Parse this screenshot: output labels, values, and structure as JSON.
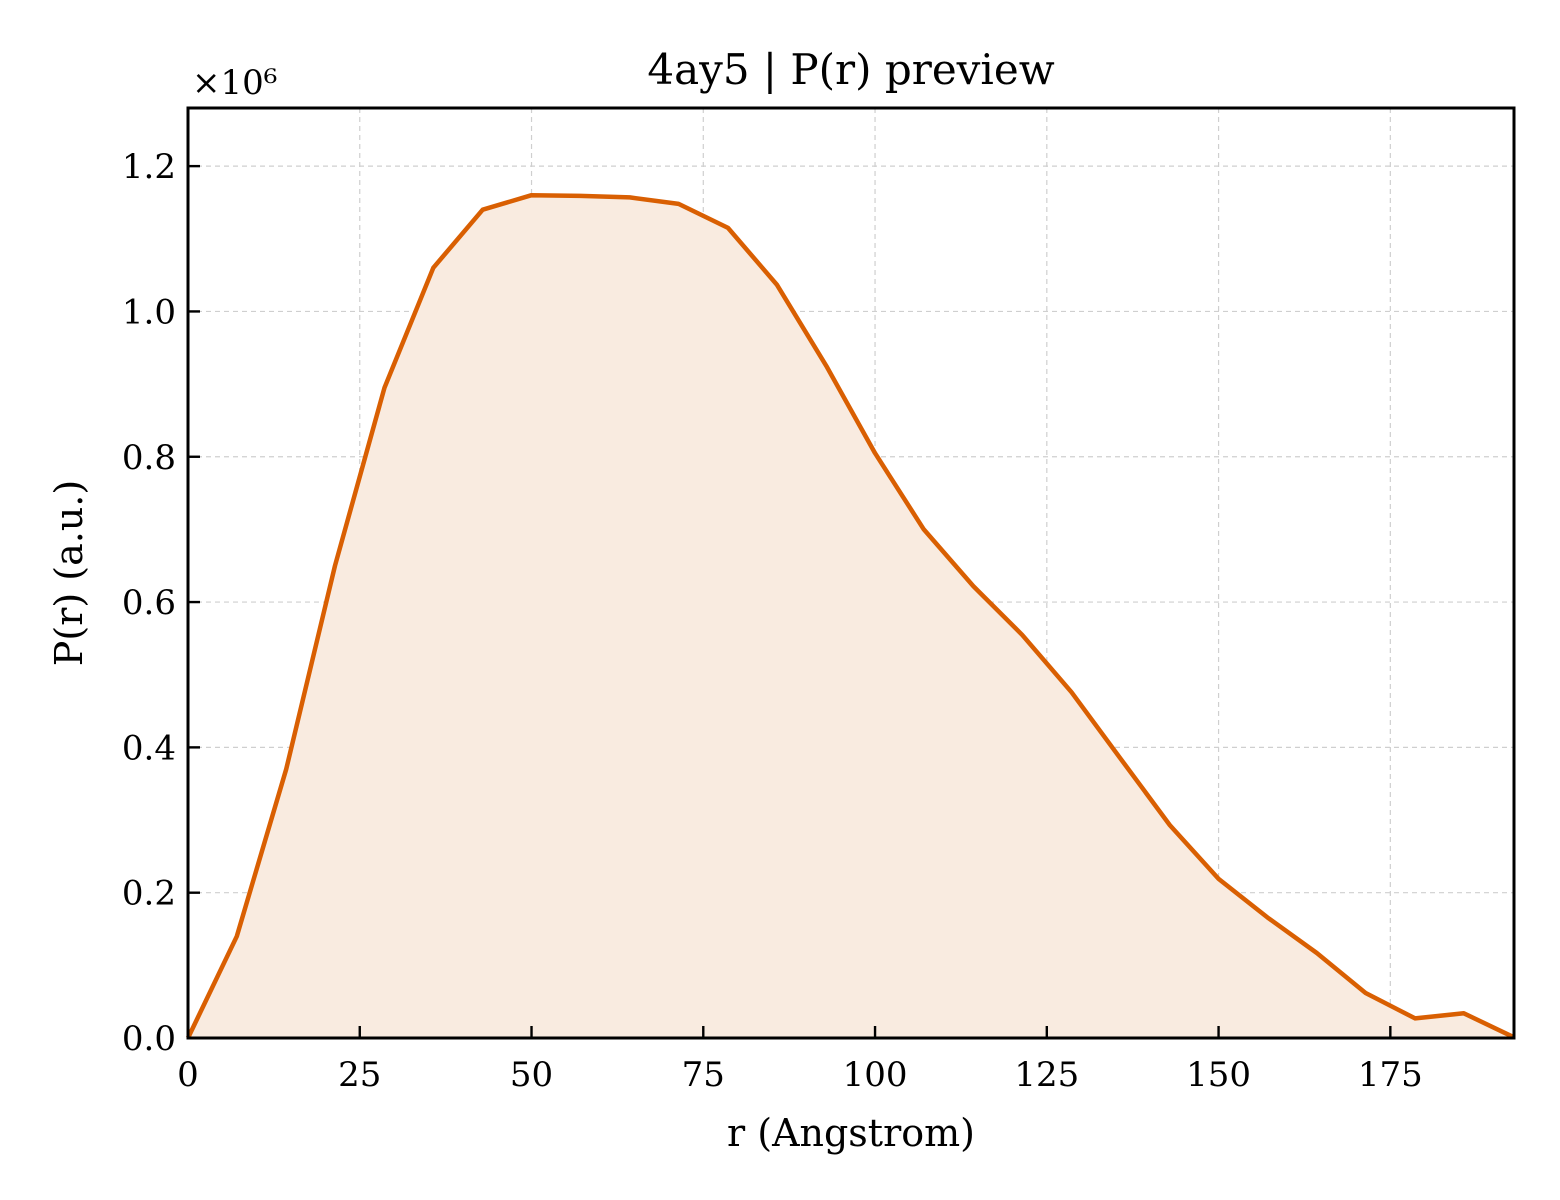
{
  "chart_data": {
    "type": "area",
    "title": "4ay5 | P(r) preview",
    "xlabel": "r (Angstrom)",
    "ylabel": "P(r) (a.u.)",
    "y_multiplier_label": "×10⁶",
    "xlim": [
      0,
      193
    ],
    "ylim": [
      0,
      1.28
    ],
    "xticks": [
      0,
      25,
      50,
      75,
      100,
      125,
      150,
      175
    ],
    "yticks": [
      "0.0",
      "0.2",
      "0.4",
      "0.6",
      "0.8",
      "1.0",
      "1.2"
    ],
    "grid": true,
    "line_color": "#d95f02",
    "fill_color": "#f9ebe0",
    "series": [
      {
        "x": [
          0,
          7.1,
          14.3,
          21.4,
          28.6,
          35.7,
          42.9,
          50,
          57.1,
          64.3,
          71.4,
          78.6,
          85.7,
          92.9,
          100,
          107.1,
          114.3,
          121.4,
          128.6,
          135.7,
          142.9,
          150,
          157.1,
          164.3,
          171.4,
          178.6,
          185.7,
          193
        ],
        "y": [
          0,
          0.14,
          0.37,
          0.65,
          0.895,
          1.06,
          1.14,
          1.16,
          1.159,
          1.157,
          1.148,
          1.115,
          1.037,
          0.925,
          0.805,
          0.7,
          0.622,
          0.555,
          0.476,
          0.385,
          0.293,
          0.219,
          0.166,
          0.117,
          0.062,
          0.027,
          0.034,
          0.001
        ]
      }
    ]
  }
}
